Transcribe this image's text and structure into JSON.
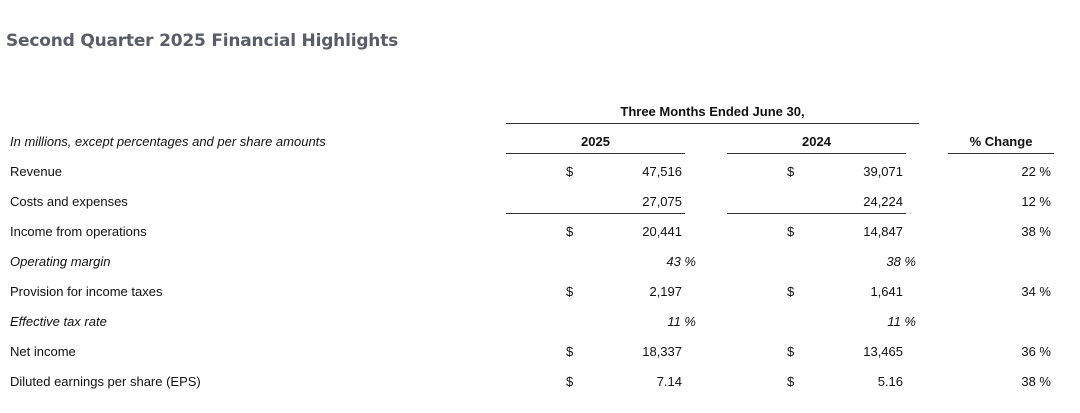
{
  "title": "Second Quarter 2025 Financial Highlights",
  "table": {
    "period_header": "Three Months Ended June 30,",
    "row_header": "In millions, except percentages and per share amounts",
    "col_2025": "2025",
    "col_2024": "2024",
    "col_change": "% Change",
    "rows": [
      {
        "label": "Revenue",
        "italic": false,
        "cur_2025": "$",
        "val_2025": "47,516",
        "cur_2024": "$",
        "val_2024": "39,071",
        "change": "22 %"
      },
      {
        "label": "Costs and expenses",
        "italic": false,
        "cur_2025": "",
        "val_2025": "27,075",
        "cur_2024": "",
        "val_2024": "24,224",
        "change": "12 %"
      },
      {
        "label": "Income from operations",
        "italic": false,
        "cur_2025": "$",
        "val_2025": "20,441",
        "cur_2024": "$",
        "val_2024": "14,847",
        "change": "38 %"
      },
      {
        "label": "Operating margin",
        "italic": true,
        "cur_2025": "",
        "val_2025": "43 %",
        "cur_2024": "",
        "val_2024": "38 %",
        "change": ""
      },
      {
        "label": "Provision for income taxes",
        "italic": false,
        "cur_2025": "$",
        "val_2025": "2,197",
        "cur_2024": "$",
        "val_2024": "1,641",
        "change": "34 %"
      },
      {
        "label": "Effective tax rate",
        "italic": true,
        "cur_2025": "",
        "val_2025": "11 %",
        "cur_2024": "",
        "val_2024": "11 %",
        "change": ""
      },
      {
        "label": "Net income",
        "italic": false,
        "cur_2025": "$",
        "val_2025": "18,337",
        "cur_2024": "$",
        "val_2024": "13,465",
        "change": "36 %"
      },
      {
        "label": "Diluted earnings per share (EPS)",
        "italic": false,
        "cur_2025": "$",
        "val_2025": "7.14",
        "cur_2024": "$",
        "val_2024": "5.16",
        "change": "38 %"
      }
    ]
  }
}
